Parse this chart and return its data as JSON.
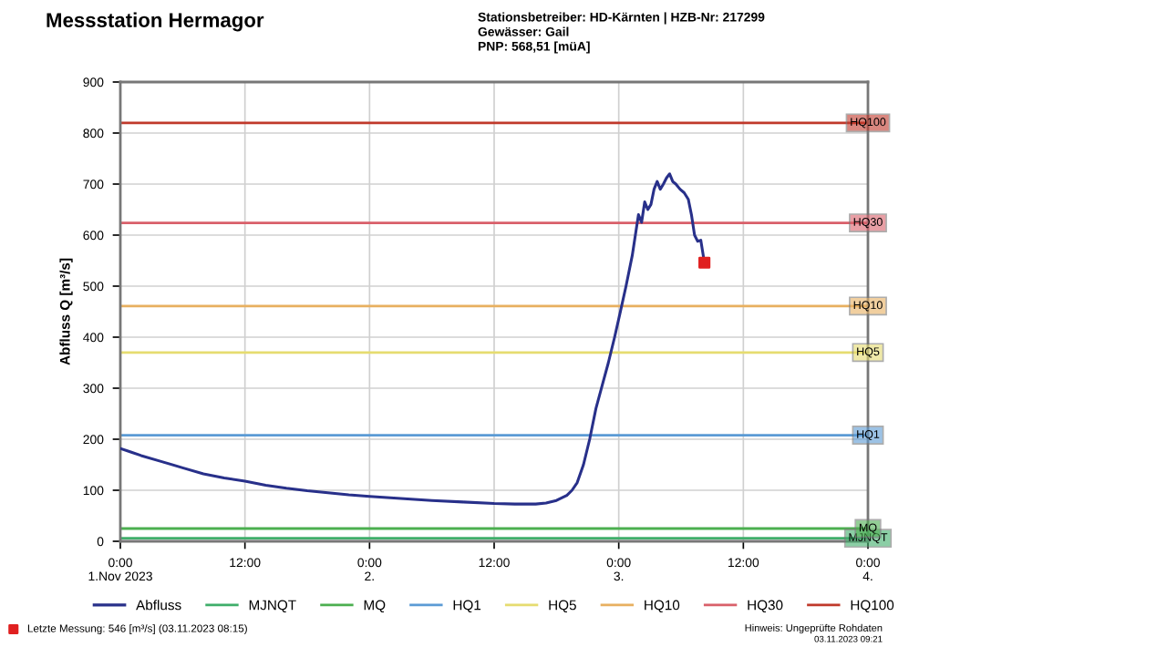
{
  "chart_data": {
    "type": "line",
    "title": "Messstation Hermagor",
    "annotations": [
      "Stationsbetreiber: HD-Kärnten | HZB-Nr: 217299",
      "Gewässer: Gail",
      "PNP: 568,51 [müA]",
      "Hinweis: Ungeprüfte Rohdaten",
      "03.11.2023 09:21"
    ],
    "ylabel": "Abfluss Q [m³/s]",
    "series": [
      {
        "name": "Abfluss",
        "color": "#28308a",
        "x": [
          "2023-11-01T00:00",
          "2023-11-01T01:00",
          "2023-11-01T02:00",
          "2023-11-01T04:00",
          "2023-11-01T06:00",
          "2023-11-01T08:00",
          "2023-11-01T10:00",
          "2023-11-01T12:00",
          "2023-11-01T14:00",
          "2023-11-01T16:00",
          "2023-11-01T18:00",
          "2023-11-01T20:00",
          "2023-11-01T22:00",
          "2023-11-02T00:00",
          "2023-11-02T03:00",
          "2023-11-02T06:00",
          "2023-11-02T09:00",
          "2023-11-02T12:00",
          "2023-11-02T14:00",
          "2023-11-02T16:00",
          "2023-11-02T17:00",
          "2023-11-02T18:00",
          "2023-11-02T19:00",
          "2023-11-02T19:30",
          "2023-11-02T20:00",
          "2023-11-02T20:36",
          "2023-11-02T21:12",
          "2023-11-02T21:48",
          "2023-11-02T22:24",
          "2023-11-02T23:00",
          "2023-11-02T23:36",
          "2023-11-03T00:06",
          "2023-11-03T00:42",
          "2023-11-03T01:18",
          "2023-11-03T01:36",
          "2023-11-03T01:54",
          "2023-11-03T02:12",
          "2023-11-03T02:30",
          "2023-11-03T02:48",
          "2023-11-03T03:06",
          "2023-11-03T03:24",
          "2023-11-03T03:42",
          "2023-11-03T04:00",
          "2023-11-03T04:18",
          "2023-11-03T04:36",
          "2023-11-03T04:54",
          "2023-11-03T05:12",
          "2023-11-03T05:30",
          "2023-11-03T05:54",
          "2023-11-03T06:18",
          "2023-11-03T06:42",
          "2023-11-03T07:00",
          "2023-11-03T07:18",
          "2023-11-03T07:36",
          "2023-11-03T07:54",
          "2023-11-03T08:15"
        ],
        "values": [
          182,
          175,
          168,
          156,
          144,
          132,
          124,
          118,
          110,
          104,
          99,
          95,
          91,
          88,
          84,
          80,
          77,
          74,
          73,
          73,
          75,
          80,
          90,
          100,
          115,
          150,
          200,
          260,
          305,
          350,
          400,
          445,
          500,
          560,
          600,
          640,
          625,
          665,
          650,
          660,
          690,
          705,
          690,
          700,
          712,
          720,
          705,
          700,
          690,
          683,
          670,
          640,
          600,
          588,
          590,
          546
        ]
      },
      {
        "name": "Letzte Messung: 546 [m³/s] (03.11.2023 08:15)",
        "type": "scatter",
        "marker": "square",
        "color": "#e02020",
        "x": [
          "2023-11-03T08:15"
        ],
        "values": [
          546
        ]
      }
    ],
    "ref_lines": [
      {
        "axis": "y",
        "value": 6,
        "label": "MJNQT",
        "color": "#3fae6a"
      },
      {
        "axis": "y",
        "value": 25,
        "label": "MQ",
        "color": "#4caf50"
      },
      {
        "axis": "y",
        "value": 208,
        "label": "HQ1",
        "color": "#5b9bd5"
      },
      {
        "axis": "y",
        "value": 370,
        "label": "HQ5",
        "color": "#e6dc70"
      },
      {
        "axis": "y",
        "value": 461,
        "label": "HQ10",
        "color": "#e8b060"
      },
      {
        "axis": "y",
        "value": 624,
        "label": "HQ30",
        "color": "#d9606a"
      },
      {
        "axis": "y",
        "value": 820,
        "label": "HQ100",
        "color": "#c0392b"
      }
    ],
    "xlim": [
      "2023-11-01T00:00",
      "2023-11-04T00:00"
    ],
    "xticks": [
      {
        "value": "2023-11-01T00:00",
        "label": "0:00\n1.Nov 2023"
      },
      {
        "value": "2023-11-01T12:00",
        "label": "12:00"
      },
      {
        "value": "2023-11-02T00:00",
        "label": "0:00\n2."
      },
      {
        "value": "2023-11-02T12:00",
        "label": "12:00"
      },
      {
        "value": "2023-11-03T00:00",
        "label": "0:00\n3."
      },
      {
        "value": "2023-11-03T12:00",
        "label": "12:00"
      },
      {
        "value": "2023-11-04T00:00",
        "label": "0:00\n4."
      }
    ],
    "ylim": [
      0,
      900
    ],
    "yticks": [
      0,
      100,
      200,
      300,
      400,
      500,
      600,
      700,
      800,
      900
    ],
    "grid": true,
    "legend": "bottom",
    "marker": "none",
    "line_style": "solid"
  }
}
